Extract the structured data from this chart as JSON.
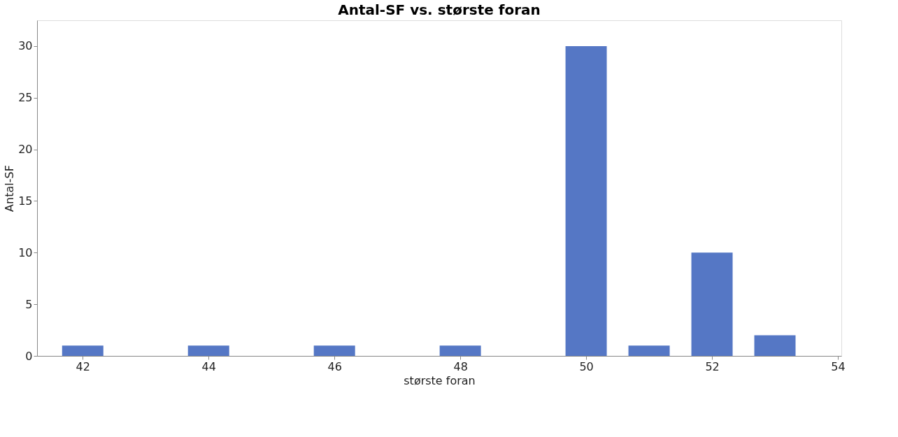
{
  "chart_data": {
    "type": "bar",
    "title": "Antal-SF vs. største foran",
    "xlabel": "største foran",
    "ylabel": "Antal-SF",
    "x": [
      42,
      44,
      46,
      48,
      50,
      51,
      52,
      53
    ],
    "series": [
      {
        "color": "#5577c5",
        "values": [
          1,
          1,
          1,
          1,
          30,
          1,
          10,
          2
        ]
      }
    ],
    "xlim": [
      41.33,
      54
    ],
    "xticks": [
      42,
      44,
      46,
      48,
      50,
      52,
      54
    ],
    "ylim": [
      0,
      32.5
    ],
    "yticks": [
      0,
      5,
      10,
      15,
      20,
      25,
      30
    ],
    "grid": false
  }
}
